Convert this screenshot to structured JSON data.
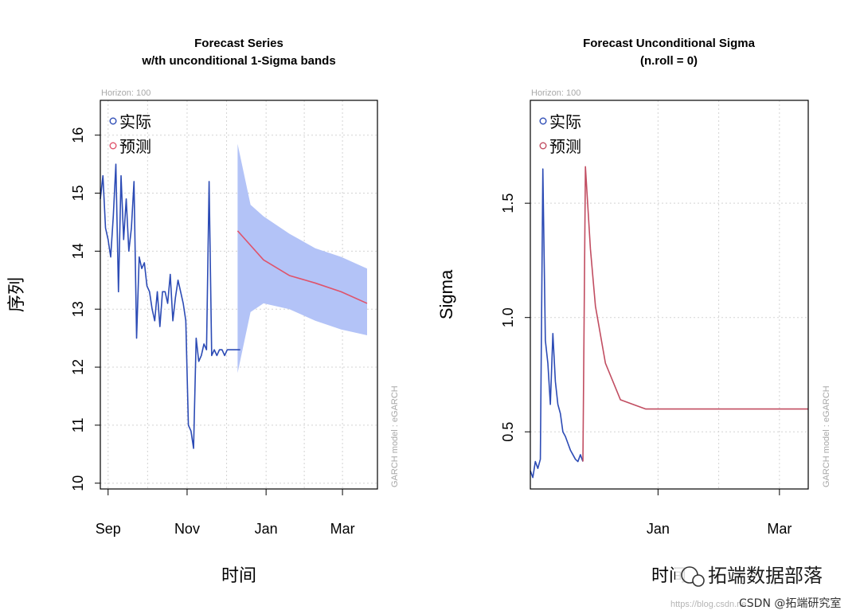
{
  "chart_data": [
    {
      "type": "line",
      "title": "Forecast Series",
      "subtitle": "w/th unconditional 1-Sigma bands",
      "xlabel": "时间",
      "ylabel": "序列",
      "horizon_text": "Horizon: 100",
      "model_text": "GARCH model : eGARCH",
      "ylim": [
        9.9,
        16.6
      ],
      "yticks": [
        10,
        11,
        12,
        13,
        14,
        15,
        16
      ],
      "xlim": [
        -6,
        208
      ],
      "xticks": [
        {
          "label": "Sep",
          "x": 0
        },
        {
          "label": "Nov",
          "x": 61
        },
        {
          "label": "Jan",
          "x": 122
        },
        {
          "label": "Mar",
          "x": 181
        }
      ],
      "grid": true,
      "legend_position": "top-left",
      "series": [
        {
          "name": "实际",
          "color": "#2c4bb5",
          "x": [
            -6,
            -4,
            -2,
            0,
            2,
            4,
            6,
            8,
            10,
            12,
            14,
            16,
            18,
            20,
            22,
            24,
            26,
            28,
            30,
            32,
            34,
            36,
            38,
            40,
            42,
            44,
            46,
            48,
            50,
            52,
            54,
            56,
            58,
            60,
            62,
            64,
            66,
            68,
            70,
            72,
            74,
            76,
            78,
            80,
            82,
            84,
            86,
            88,
            90,
            92,
            94,
            95,
            96,
            97,
            98,
            100,
            102
          ],
          "values": [
            14.9,
            15.3,
            14.4,
            14.2,
            13.9,
            14.6,
            15.5,
            13.3,
            15.3,
            14.2,
            14.9,
            14.0,
            14.4,
            15.2,
            12.5,
            13.9,
            13.7,
            13.8,
            13.4,
            13.3,
            13.0,
            12.8,
            13.3,
            12.7,
            13.3,
            13.3,
            13.1,
            13.6,
            12.8,
            13.2,
            13.5,
            13.3,
            13.1,
            12.8,
            11.0,
            10.9,
            10.6,
            12.5,
            12.1,
            12.2,
            12.4,
            12.3,
            15.2,
            12.2,
            12.3,
            12.2,
            12.3,
            12.3,
            12.2,
            12.3,
            12.3,
            12.3,
            12.3,
            12.3,
            12.3,
            12.3,
            12.3
          ]
        },
        {
          "name": "预测",
          "color": "#df536b",
          "x": [
            100,
            120,
            140,
            160,
            180,
            200
          ],
          "values": [
            14.35,
            13.85,
            13.58,
            13.45,
            13.3,
            13.1
          ]
        }
      ],
      "band": {
        "color": "#b3c3f7",
        "x": [
          100,
          110,
          120,
          140,
          160,
          180,
          200
        ],
        "upper": [
          15.85,
          14.8,
          14.6,
          14.3,
          14.05,
          13.9,
          13.7
        ],
        "lower": [
          11.9,
          12.95,
          13.1,
          13.0,
          12.8,
          12.65,
          12.55
        ]
      }
    },
    {
      "type": "line",
      "title": "Forecast Unconditional Sigma",
      "subtitle": "(n.roll = 0)",
      "xlabel": "时间",
      "ylabel": "Sigma",
      "horizon_text": "Horizon: 100",
      "model_text": "GARCH model : eGARCH",
      "ylim": [
        0.25,
        1.95
      ],
      "yticks": [
        0.5,
        1.0,
        1.5
      ],
      "ytick_labels": [
        "0.5",
        "1.0",
        "1.5"
      ],
      "xlim": [
        -12,
        210
      ],
      "xticks": [
        {
          "label": "Jan",
          "x": 90
        },
        {
          "label": "Mar",
          "x": 187
        }
      ],
      "grid": true,
      "legend_position": "top-left",
      "series": [
        {
          "name": "实际",
          "color": "#2c4bb5",
          "x": [
            -12,
            -10,
            -8,
            -6,
            -4,
            -2,
            0,
            2,
            4,
            6,
            8,
            10,
            12,
            14,
            16,
            18,
            20,
            22,
            24,
            26,
            28,
            30
          ],
          "values": [
            0.33,
            0.3,
            0.37,
            0.34,
            0.38,
            1.65,
            0.9,
            0.8,
            0.62,
            0.93,
            0.72,
            0.62,
            0.58,
            0.5,
            0.48,
            0.45,
            0.42,
            0.4,
            0.38,
            0.37,
            0.4,
            0.37
          ],
          "_note_": "values read off the plot"
        },
        {
          "name": "预测",
          "color": "#c14d61",
          "x": [
            30,
            32,
            36,
            40,
            48,
            60,
            80,
            100,
            140,
            180,
            210
          ],
          "values": [
            0.37,
            1.66,
            1.3,
            1.05,
            0.8,
            0.64,
            0.6,
            0.6,
            0.6,
            0.6,
            0.6
          ]
        }
      ]
    }
  ],
  "watermark": {
    "brand": "拓端数据部落",
    "csdn": "CSDN @拓端研究室",
    "url": "https://blog.csdn.ne"
  }
}
